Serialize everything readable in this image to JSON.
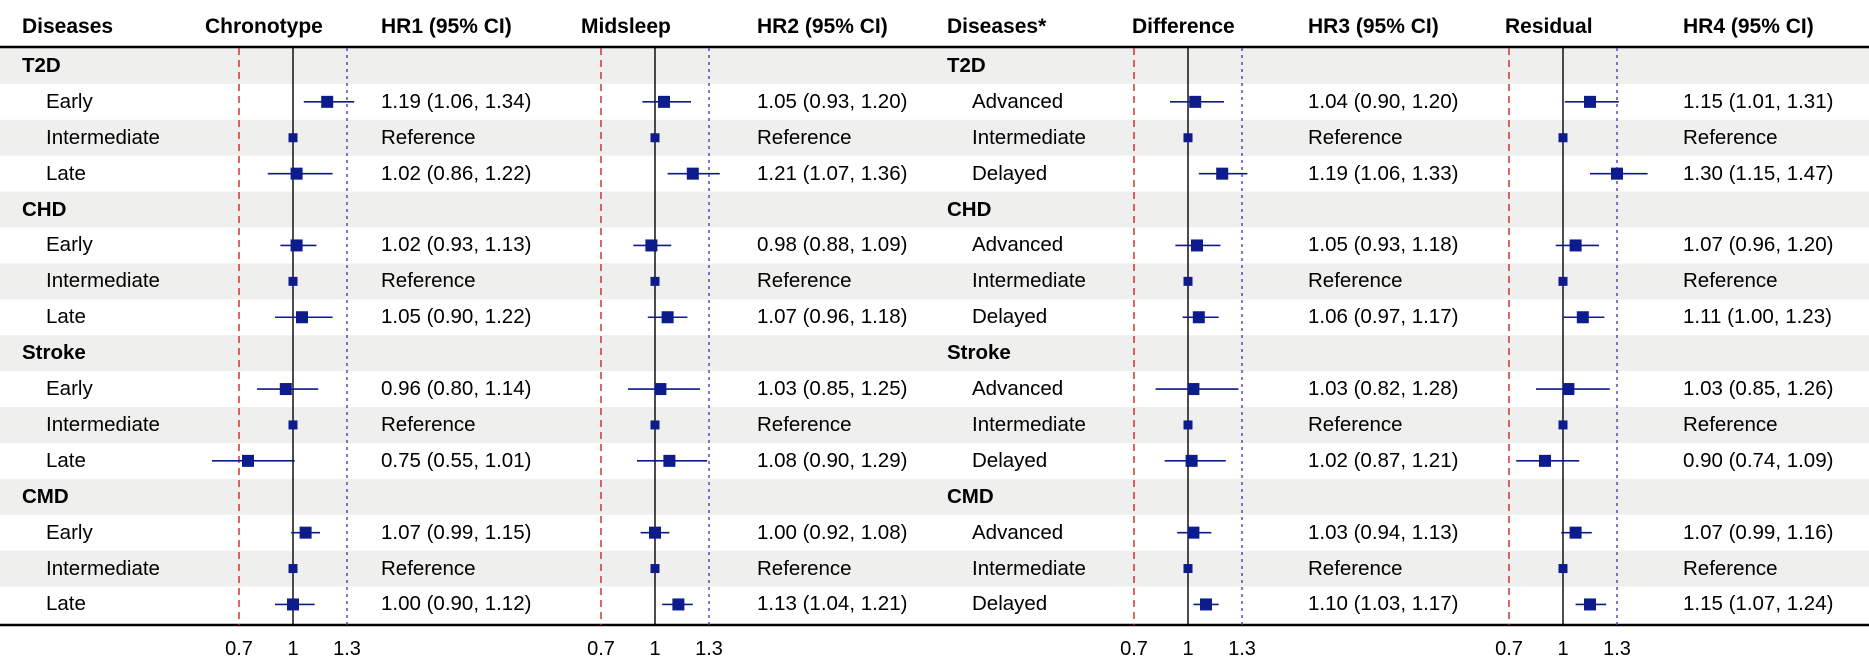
{
  "headers": {
    "left_label": "Diseases",
    "plot1": "Chronotype",
    "hr1": "HR1 (95% CI)",
    "plot2": "Midsleep",
    "hr2": "HR2 (95% CI)",
    "right_label": "Diseases*",
    "plot3": "Difference",
    "hr3": "HR3 (95% CI)",
    "plot4": "Residual",
    "hr4": "HR4 (95% CI)"
  },
  "axis": {
    "ticks": [
      0.7,
      1,
      1.3
    ],
    "tick_labels": [
      "0.7",
      "1",
      "1.3"
    ],
    "reference_lines": {
      "low": 0.7,
      "null": 1,
      "high": 1.3
    },
    "colors": {
      "low": "#c62828",
      "null": "#000000",
      "high": "#5e35b1"
    }
  },
  "colors": {
    "marker": "#0d1b8c",
    "stripe": "#efefed",
    "rule": "#000000"
  },
  "chart_data": {
    "type": "forest",
    "groups": [
      "T2D",
      "CHD",
      "Stroke",
      "CMD"
    ],
    "rows": [
      {
        "kind": "group",
        "left": "T2D",
        "right": "T2D"
      },
      {
        "kind": "row",
        "left": "Early",
        "right": "Advanced",
        "hr1": [
          1.19,
          1.06,
          1.34
        ],
        "hr1_text": "1.19 (1.06, 1.34)",
        "hr2": [
          1.05,
          0.93,
          1.2
        ],
        "hr2_text": "1.05 (0.93, 1.20)",
        "hr3": [
          1.04,
          0.9,
          1.2
        ],
        "hr3_text": "1.04 (0.90, 1.20)",
        "hr4": [
          1.15,
          1.01,
          1.31
        ],
        "hr4_text": "1.15 (1.01, 1.31)"
      },
      {
        "kind": "row",
        "left": "Intermediate",
        "right": "Intermediate",
        "hr1": [
          1,
          1,
          1
        ],
        "hr1_text": "Reference",
        "hr2": [
          1,
          1,
          1
        ],
        "hr2_text": "Reference",
        "hr3": [
          1,
          1,
          1
        ],
        "hr3_text": "Reference",
        "hr4": [
          1,
          1,
          1
        ],
        "hr4_text": "Reference"
      },
      {
        "kind": "row",
        "left": "Late",
        "right": "Delayed",
        "hr1": [
          1.02,
          0.86,
          1.22
        ],
        "hr1_text": "1.02 (0.86, 1.22)",
        "hr2": [
          1.21,
          1.07,
          1.36
        ],
        "hr2_text": "1.21 (1.07, 1.36)",
        "hr3": [
          1.19,
          1.06,
          1.33
        ],
        "hr3_text": "1.19 (1.06, 1.33)",
        "hr4": [
          1.3,
          1.15,
          1.47
        ],
        "hr4_text": "1.30 (1.15, 1.47)"
      },
      {
        "kind": "group",
        "left": "CHD",
        "right": "CHD"
      },
      {
        "kind": "row",
        "left": "Early",
        "right": "Advanced",
        "hr1": [
          1.02,
          0.93,
          1.13
        ],
        "hr1_text": "1.02 (0.93, 1.13)",
        "hr2": [
          0.98,
          0.88,
          1.09
        ],
        "hr2_text": "0.98 (0.88, 1.09)",
        "hr3": [
          1.05,
          0.93,
          1.18
        ],
        "hr3_text": "1.05 (0.93, 1.18)",
        "hr4": [
          1.07,
          0.96,
          1.2
        ],
        "hr4_text": "1.07 (0.96, 1.20)"
      },
      {
        "kind": "row",
        "left": "Intermediate",
        "right": "Intermediate",
        "hr1": [
          1,
          1,
          1
        ],
        "hr1_text": "Reference",
        "hr2": [
          1,
          1,
          1
        ],
        "hr2_text": "Reference",
        "hr3": [
          1,
          1,
          1
        ],
        "hr3_text": "Reference",
        "hr4": [
          1,
          1,
          1
        ],
        "hr4_text": "Reference"
      },
      {
        "kind": "row",
        "left": "Late",
        "right": "Delayed",
        "hr1": [
          1.05,
          0.9,
          1.22
        ],
        "hr1_text": "1.05 (0.90, 1.22)",
        "hr2": [
          1.07,
          0.96,
          1.18
        ],
        "hr2_text": "1.07 (0.96, 1.18)",
        "hr3": [
          1.06,
          0.97,
          1.17
        ],
        "hr3_text": "1.06 (0.97, 1.17)",
        "hr4": [
          1.11,
          1.0,
          1.23
        ],
        "hr4_text": "1.11 (1.00, 1.23)"
      },
      {
        "kind": "group",
        "left": "Stroke",
        "right": "Stroke"
      },
      {
        "kind": "row",
        "left": "Early",
        "right": "Advanced",
        "hr1": [
          0.96,
          0.8,
          1.14
        ],
        "hr1_text": "0.96 (0.80, 1.14)",
        "hr2": [
          1.03,
          0.85,
          1.25
        ],
        "hr2_text": "1.03 (0.85, 1.25)",
        "hr3": [
          1.03,
          0.82,
          1.28
        ],
        "hr3_text": "1.03 (0.82, 1.28)",
        "hr4": [
          1.03,
          0.85,
          1.26
        ],
        "hr4_text": "1.03 (0.85, 1.26)"
      },
      {
        "kind": "row",
        "left": "Intermediate",
        "right": "Intermediate",
        "hr1": [
          1,
          1,
          1
        ],
        "hr1_text": "Reference",
        "hr2": [
          1,
          1,
          1
        ],
        "hr2_text": "Reference",
        "hr3": [
          1,
          1,
          1
        ],
        "hr3_text": "Reference",
        "hr4": [
          1,
          1,
          1
        ],
        "hr4_text": "Reference"
      },
      {
        "kind": "row",
        "left": "Late",
        "right": "Delayed",
        "hr1": [
          0.75,
          0.55,
          1.01
        ],
        "hr1_text": "0.75 (0.55, 1.01)",
        "hr2": [
          1.08,
          0.9,
          1.29
        ],
        "hr2_text": "1.08 (0.90, 1.29)",
        "hr3": [
          1.02,
          0.87,
          1.21
        ],
        "hr3_text": "1.02 (0.87, 1.21)",
        "hr4": [
          0.9,
          0.74,
          1.09
        ],
        "hr4_text": "0.90 (0.74, 1.09)"
      },
      {
        "kind": "group",
        "left": "CMD",
        "right": "CMD"
      },
      {
        "kind": "row",
        "left": "Early",
        "right": "Advanced",
        "hr1": [
          1.07,
          0.99,
          1.15
        ],
        "hr1_text": "1.07 (0.99, 1.15)",
        "hr2": [
          1.0,
          0.92,
          1.08
        ],
        "hr2_text": "1.00 (0.92, 1.08)",
        "hr3": [
          1.03,
          0.94,
          1.13
        ],
        "hr3_text": "1.03 (0.94, 1.13)",
        "hr4": [
          1.07,
          0.99,
          1.16
        ],
        "hr4_text": "1.07 (0.99, 1.16)"
      },
      {
        "kind": "row",
        "left": "Intermediate",
        "right": "Intermediate",
        "hr1": [
          1,
          1,
          1
        ],
        "hr1_text": "Reference",
        "hr2": [
          1,
          1,
          1
        ],
        "hr2_text": "Reference",
        "hr3": [
          1,
          1,
          1
        ],
        "hr3_text": "Reference",
        "hr4": [
          1,
          1,
          1
        ],
        "hr4_text": "Reference"
      },
      {
        "kind": "row",
        "left": "Late",
        "right": "Delayed",
        "hr1": [
          1.0,
          0.9,
          1.12
        ],
        "hr1_text": "1.00 (0.90, 1.12)",
        "hr2": [
          1.13,
          1.04,
          1.21
        ],
        "hr2_text": "1.13 (1.04, 1.21)",
        "hr3": [
          1.1,
          1.03,
          1.17
        ],
        "hr3_text": "1.10 (1.03, 1.17)",
        "hr4": [
          1.15,
          1.07,
          1.24
        ],
        "hr4_text": "1.15 (1.07, 1.24)"
      }
    ]
  }
}
